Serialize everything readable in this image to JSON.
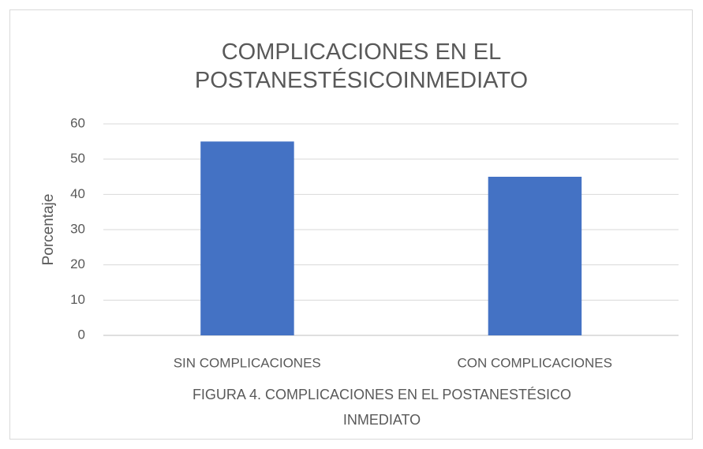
{
  "chart_data": {
    "type": "bar",
    "title": "COMPLICACIONES EN EL POSTANESTÉSICOINMEDIATO",
    "xlabel": "FIGURA 4. COMPLICACIONES EN EL POSTANESTÉSICO INMEDIATO",
    "ylabel": "Porcentaje",
    "categories": [
      "SIN COMPLICACIONES",
      "CON COMPLICACIONES"
    ],
    "values": [
      55,
      45
    ],
    "color": "#4472c4",
    "ylim": [
      0,
      60
    ],
    "yticks": [
      0,
      10,
      20,
      30,
      40,
      50,
      60
    ],
    "grid": true
  }
}
